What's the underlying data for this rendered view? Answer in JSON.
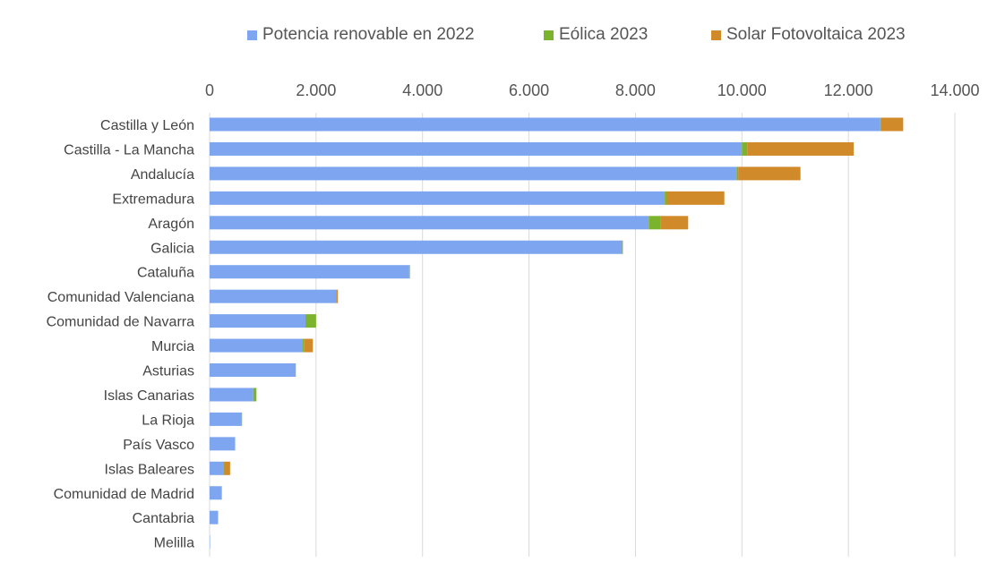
{
  "chart_data": {
    "type": "bar",
    "orientation": "horizontal",
    "stacked": true,
    "title": "",
    "xlabel": "",
    "ylabel": "",
    "xlim": [
      0,
      14000
    ],
    "x_ticks": [
      0,
      2000,
      4000,
      6000,
      8000,
      10000,
      12000,
      14000
    ],
    "x_tick_labels": [
      "0",
      "2.000",
      "4.000",
      "6.000",
      "8.000",
      "10.000",
      "12.000",
      "14.000"
    ],
    "x_axis_position": "top",
    "grid": "vertical",
    "legend_position": "top",
    "categories": [
      "Castilla y León",
      "Castilla - La Mancha",
      "Andalucía",
      "Extremadura",
      "Aragón",
      "Galicia",
      "Cataluña",
      "Comunidad Valenciana",
      "Comunidad de Navarra",
      "Murcia",
      "Asturias",
      "Islas Canarias",
      "La Rioja",
      "País Vasco",
      "Islas Baleares",
      "Comunidad de Madrid",
      "Cantabria",
      "Melilla"
    ],
    "series": [
      {
        "name": "Potencia renovable en 2022",
        "color": "#7ea6f0",
        "values": [
          12600,
          10000,
          9900,
          8550,
          8250,
          7750,
          3750,
          2380,
          1800,
          1750,
          1620,
          820,
          600,
          480,
          270,
          230,
          160,
          5
        ]
      },
      {
        "name": "Eólica 2023",
        "color": "#7cb32c",
        "values": [
          10,
          100,
          30,
          40,
          220,
          5,
          5,
          5,
          200,
          30,
          0,
          60,
          10,
          0,
          5,
          0,
          0,
          0
        ]
      },
      {
        "name": "Solar Fotovoltaica 2023",
        "color": "#d08a2a",
        "values": [
          420,
          2000,
          1170,
          1080,
          520,
          5,
          5,
          25,
          0,
          160,
          0,
          0,
          0,
          0,
          110,
          0,
          0,
          0
        ]
      }
    ]
  }
}
